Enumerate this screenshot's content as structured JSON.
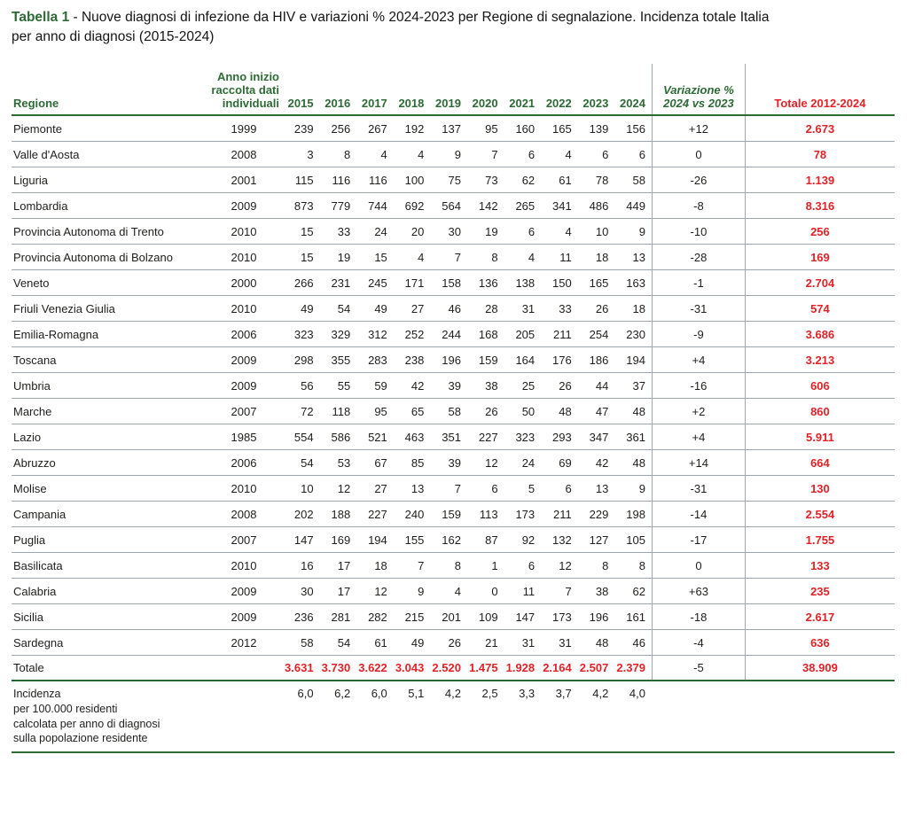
{
  "title": {
    "label": "Tabella 1",
    "line1": " - Nuove diagnosi di infezione da HIV e variazioni % 2024-2023 per Regione di segnalazione. Incidenza totale Italia",
    "line2": "per anno di diagnosi (2015-2024)"
  },
  "colors": {
    "green": "#2d6a35",
    "red": "#e32228",
    "line_gray": "#9fa6ad"
  },
  "table": {
    "col_headers": {
      "regione": "Regione",
      "anno_inizio": "Anno inizio\nraccolta dati\nindividuali",
      "years": [
        "2015",
        "2016",
        "2017",
        "2018",
        "2019",
        "2020",
        "2021",
        "2022",
        "2023",
        "2024"
      ],
      "variazione": "Variazione %\n2024 vs 2023",
      "totale": "Totale 2012-2024"
    },
    "rows": [
      {
        "regione": "Piemonte",
        "anno": "1999",
        "values": [
          "239",
          "256",
          "267",
          "192",
          "137",
          "95",
          "160",
          "165",
          "139",
          "156"
        ],
        "variazione": "+12",
        "totale": "2.673"
      },
      {
        "regione": "Valle d'Aosta",
        "anno": "2008",
        "values": [
          "3",
          "8",
          "4",
          "4",
          "9",
          "7",
          "6",
          "4",
          "6",
          "6"
        ],
        "variazione": "0",
        "totale": "78"
      },
      {
        "regione": "Liguria",
        "anno": "2001",
        "values": [
          "115",
          "116",
          "116",
          "100",
          "75",
          "73",
          "62",
          "61",
          "78",
          "58"
        ],
        "variazione": "-26",
        "totale": "1.139"
      },
      {
        "regione": "Lombardia",
        "anno": "2009",
        "values": [
          "873",
          "779",
          "744",
          "692",
          "564",
          "142",
          "265",
          "341",
          "486",
          "449"
        ],
        "variazione": "-8",
        "totale": "8.316"
      },
      {
        "regione": "Provincia Autonoma di Trento",
        "anno": "2010",
        "values": [
          "15",
          "33",
          "24",
          "20",
          "30",
          "19",
          "6",
          "4",
          "10",
          "9"
        ],
        "variazione": "-10",
        "totale": "256"
      },
      {
        "regione": "Provincia Autonoma di Bolzano",
        "anno": "2010",
        "values": [
          "15",
          "19",
          "15",
          "4",
          "7",
          "8",
          "4",
          "11",
          "18",
          "13"
        ],
        "variazione": "-28",
        "totale": "169"
      },
      {
        "regione": "Veneto",
        "anno": "2000",
        "values": [
          "266",
          "231",
          "245",
          "171",
          "158",
          "136",
          "138",
          "150",
          "165",
          "163"
        ],
        "variazione": "-1",
        "totale": "2.704"
      },
      {
        "regione": "Friuli Venezia Giulia",
        "anno": "2010",
        "values": [
          "49",
          "54",
          "49",
          "27",
          "46",
          "28",
          "31",
          "33",
          "26",
          "18"
        ],
        "variazione": "-31",
        "totale": "574"
      },
      {
        "regione": "Emilia-Romagna",
        "anno": "2006",
        "values": [
          "323",
          "329",
          "312",
          "252",
          "244",
          "168",
          "205",
          "211",
          "254",
          "230"
        ],
        "variazione": "-9",
        "totale": "3.686"
      },
      {
        "regione": "Toscana",
        "anno": "2009",
        "values": [
          "298",
          "355",
          "283",
          "238",
          "196",
          "159",
          "164",
          "176",
          "186",
          "194"
        ],
        "variazione": "+4",
        "totale": "3.213"
      },
      {
        "regione": "Umbria",
        "anno": "2009",
        "values": [
          "56",
          "55",
          "59",
          "42",
          "39",
          "38",
          "25",
          "26",
          "44",
          "37"
        ],
        "variazione": "-16",
        "totale": "606"
      },
      {
        "regione": "Marche",
        "anno": "2007",
        "values": [
          "72",
          "118",
          "95",
          "65",
          "58",
          "26",
          "50",
          "48",
          "47",
          "48"
        ],
        "variazione": "+2",
        "totale": "860"
      },
      {
        "regione": "Lazio",
        "anno": "1985",
        "values": [
          "554",
          "586",
          "521",
          "463",
          "351",
          "227",
          "323",
          "293",
          "347",
          "361"
        ],
        "variazione": "+4",
        "totale": "5.911"
      },
      {
        "regione": "Abruzzo",
        "anno": "2006",
        "values": [
          "54",
          "53",
          "67",
          "85",
          "39",
          "12",
          "24",
          "69",
          "42",
          "48"
        ],
        "variazione": "+14",
        "totale": "664"
      },
      {
        "regione": "Molise",
        "anno": "2010",
        "values": [
          "10",
          "12",
          "27",
          "13",
          "7",
          "6",
          "5",
          "6",
          "13",
          "9"
        ],
        "variazione": "-31",
        "totale": "130"
      },
      {
        "regione": "Campania",
        "anno": "2008",
        "values": [
          "202",
          "188",
          "227",
          "240",
          "159",
          "113",
          "173",
          "211",
          "229",
          "198"
        ],
        "variazione": "-14",
        "totale": "2.554"
      },
      {
        "regione": "Puglia",
        "anno": "2007",
        "values": [
          "147",
          "169",
          "194",
          "155",
          "162",
          "87",
          "92",
          "132",
          "127",
          "105"
        ],
        "variazione": "-17",
        "totale": "1.755"
      },
      {
        "regione": "Basilicata",
        "anno": "2010",
        "values": [
          "16",
          "17",
          "18",
          "7",
          "8",
          "1",
          "6",
          "12",
          "8",
          "8"
        ],
        "variazione": "0",
        "totale": "133"
      },
      {
        "regione": "Calabria",
        "anno": "2009",
        "values": [
          "30",
          "17",
          "12",
          "9",
          "4",
          "0",
          "11",
          "7",
          "38",
          "62"
        ],
        "variazione": "+63",
        "totale": "235"
      },
      {
        "regione": "Sicilia",
        "anno": "2009",
        "values": [
          "236",
          "281",
          "282",
          "215",
          "201",
          "109",
          "147",
          "173",
          "196",
          "161"
        ],
        "variazione": "-18",
        "totale": "2.617"
      },
      {
        "regione": "Sardegna",
        "anno": "2012",
        "values": [
          "58",
          "54",
          "61",
          "49",
          "26",
          "21",
          "31",
          "31",
          "48",
          "46"
        ],
        "variazione": "-4",
        "totale": "636"
      }
    ],
    "totale_row": {
      "regione": "Totale",
      "anno": "",
      "values": [
        "3.631",
        "3.730",
        "3.622",
        "3.043",
        "2.520",
        "1.475",
        "1.928",
        "2.164",
        "2.507",
        "2.379"
      ],
      "variazione": "-5",
      "totale": "38.909"
    },
    "incidenza": {
      "label": "Incidenza\nper 100.000 residenti\ncalcolata per anno di diagnosi\nsulla popolazione residente",
      "values": [
        "6,0",
        "6,2",
        "6,0",
        "5,1",
        "4,2",
        "2,5",
        "3,3",
        "3,7",
        "4,2",
        "4,0"
      ]
    }
  }
}
